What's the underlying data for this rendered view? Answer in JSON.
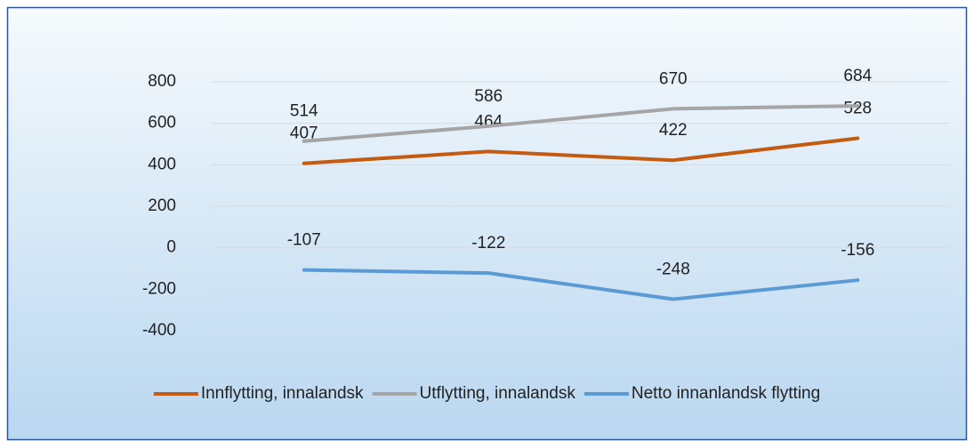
{
  "chart_data": {
    "type": "line",
    "categories": [
      null,
      null,
      null,
      null
    ],
    "series": [
      {
        "name": "Innflytting, innalandsk",
        "color": "#c55a11",
        "values": [
          407,
          464,
          422,
          528
        ]
      },
      {
        "name": "Utflytting, innalandsk",
        "color": "#a5a5a5",
        "values": [
          514,
          586,
          670,
          684
        ]
      },
      {
        "name": "Netto innanlandsk flytting",
        "color": "#5b9bd5",
        "values": [
          -107,
          -122,
          -248,
          -156
        ]
      }
    ],
    "ylim": [
      -400,
      800
    ],
    "yticks": [
      -400,
      -200,
      0,
      200,
      400,
      600,
      800
    ],
    "grid": true,
    "legend": "bottom"
  }
}
